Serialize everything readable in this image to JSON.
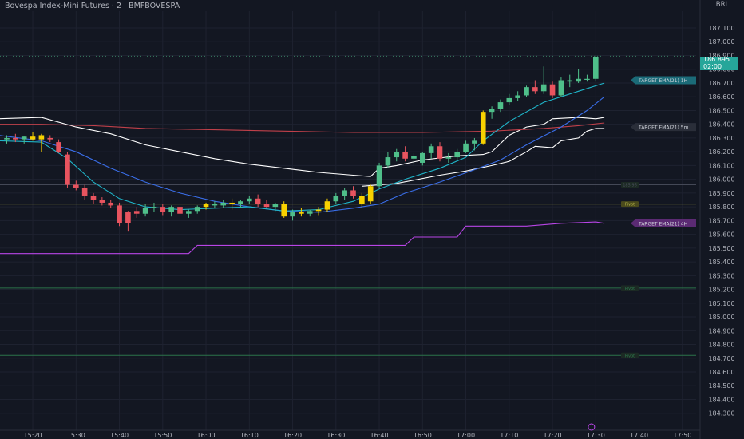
{
  "header": {
    "title": "Bovespa Index-Mini Futures · 2 · BMFBOVESPA"
  },
  "price_axis": {
    "currency": "BRL",
    "last_price": "186.895",
    "countdown": "02:00"
  },
  "colors": {
    "background": "#131722",
    "grid": "#1e2230",
    "up": "#4fbf8a",
    "down": "#e8545f",
    "yellow": "#f7d100",
    "white_band": "#ffffff",
    "red_line": "#c0404a",
    "blue_line": "#3a6ee8",
    "cyan_line": "#1fb5c9",
    "purple_line": "#b845e6",
    "pivot_yellow": "#b8b84a",
    "pivot_green": "#2e7d4f"
  },
  "chart_data": {
    "type": "candlestick",
    "title": "Bovespa Index-Mini Futures · 2 · BMFBOVESPA",
    "y_range": [
      184.25,
      187.25
    ],
    "x_range": [
      -1,
      68
    ],
    "y_ticks": [
      "187.100",
      "187.000",
      "186.900",
      "186.800",
      "186.700",
      "186.600",
      "186.500",
      "186.400",
      "186.300",
      "186.200",
      "186.100",
      "186.000",
      "185.900",
      "185.800",
      "185.700",
      "185.600",
      "185.500",
      "185.400",
      "185.300",
      "185.200",
      "185.100",
      "185.000",
      "184.900",
      "184.800",
      "184.700",
      "184.600",
      "184.500",
      "184.400",
      "184.300"
    ],
    "x_ticks": [
      {
        "label": "15:20",
        "i": 3
      },
      {
        "label": "15:30",
        "i": 8
      },
      {
        "label": "15:40",
        "i": 13
      },
      {
        "label": "15:50",
        "i": 18
      },
      {
        "label": "16:00",
        "i": 23
      },
      {
        "label": "16:10",
        "i": 28
      },
      {
        "label": "16:20",
        "i": 33
      },
      {
        "label": "16:30",
        "i": 38
      },
      {
        "label": "16:40",
        "i": 43
      },
      {
        "label": "16:50",
        "i": 48
      },
      {
        "label": "17:00",
        "i": 53
      },
      {
        "label": "17:10",
        "i": 58
      },
      {
        "label": "17:20",
        "i": 63
      },
      {
        "label": "17:30",
        "i": 68
      },
      {
        "label": "17:40",
        "i": 73
      },
      {
        "label": "17:50",
        "i": 78
      }
    ],
    "candles": [
      {
        "i": 0,
        "o": 186.29,
        "h": 186.32,
        "l": 186.26,
        "c": 186.3,
        "color": "up"
      },
      {
        "i": 1,
        "o": 186.3,
        "h": 186.33,
        "l": 186.27,
        "c": 186.29,
        "color": "down"
      },
      {
        "i": 2,
        "o": 186.29,
        "h": 186.31,
        "l": 186.26,
        "c": 186.31,
        "color": "up"
      },
      {
        "i": 3,
        "o": 186.31,
        "h": 186.34,
        "l": 186.28,
        "c": 186.29,
        "color": "yellow"
      },
      {
        "i": 4,
        "o": 186.29,
        "h": 186.33,
        "l": 186.2,
        "c": 186.32,
        "color": "yellow"
      },
      {
        "i": 5,
        "o": 186.3,
        "h": 186.32,
        "l": 186.27,
        "c": 186.29,
        "color": "down"
      },
      {
        "i": 6,
        "o": 186.27,
        "h": 186.29,
        "l": 186.19,
        "c": 186.2,
        "color": "down"
      },
      {
        "i": 7,
        "o": 186.18,
        "h": 186.2,
        "l": 185.94,
        "c": 185.96,
        "color": "down"
      },
      {
        "i": 8,
        "o": 185.96,
        "h": 185.99,
        "l": 185.92,
        "c": 185.94,
        "color": "down"
      },
      {
        "i": 9,
        "o": 185.94,
        "h": 185.96,
        "l": 185.85,
        "c": 185.88,
        "color": "down"
      },
      {
        "i": 10,
        "o": 185.88,
        "h": 185.9,
        "l": 185.82,
        "c": 185.85,
        "color": "down"
      },
      {
        "i": 11,
        "o": 185.85,
        "h": 185.87,
        "l": 185.81,
        "c": 185.83,
        "color": "down"
      },
      {
        "i": 12,
        "o": 185.83,
        "h": 185.85,
        "l": 185.79,
        "c": 185.81,
        "color": "down"
      },
      {
        "i": 13,
        "o": 185.81,
        "h": 185.83,
        "l": 185.66,
        "c": 185.68,
        "color": "down"
      },
      {
        "i": 14,
        "o": 185.68,
        "h": 185.77,
        "l": 185.62,
        "c": 185.76,
        "color": "down"
      },
      {
        "i": 15,
        "o": 185.77,
        "h": 185.8,
        "l": 185.72,
        "c": 185.75,
        "color": "down"
      },
      {
        "i": 16,
        "o": 185.75,
        "h": 185.82,
        "l": 185.73,
        "c": 185.79,
        "color": "up"
      },
      {
        "i": 17,
        "o": 185.79,
        "h": 185.83,
        "l": 185.76,
        "c": 185.8,
        "color": "up"
      },
      {
        "i": 18,
        "o": 185.8,
        "h": 185.82,
        "l": 185.74,
        "c": 185.76,
        "color": "down"
      },
      {
        "i": 19,
        "o": 185.76,
        "h": 185.81,
        "l": 185.73,
        "c": 185.8,
        "color": "up"
      },
      {
        "i": 20,
        "o": 185.8,
        "h": 185.83,
        "l": 185.74,
        "c": 185.75,
        "color": "down"
      },
      {
        "i": 21,
        "o": 185.75,
        "h": 185.78,
        "l": 185.72,
        "c": 185.77,
        "color": "up"
      },
      {
        "i": 22,
        "o": 185.77,
        "h": 185.81,
        "l": 185.75,
        "c": 185.8,
        "color": "up"
      },
      {
        "i": 23,
        "o": 185.8,
        "h": 185.83,
        "l": 185.78,
        "c": 185.82,
        "color": "yellow"
      },
      {
        "i": 24,
        "o": 185.82,
        "h": 185.84,
        "l": 185.79,
        "c": 185.81,
        "color": "up"
      },
      {
        "i": 25,
        "o": 185.81,
        "h": 185.85,
        "l": 185.79,
        "c": 185.83,
        "color": "up"
      },
      {
        "i": 26,
        "o": 185.83,
        "h": 185.86,
        "l": 185.78,
        "c": 185.82,
        "color": "yellow"
      },
      {
        "i": 27,
        "o": 185.82,
        "h": 185.85,
        "l": 185.79,
        "c": 185.84,
        "color": "up"
      },
      {
        "i": 28,
        "o": 185.84,
        "h": 185.88,
        "l": 185.82,
        "c": 185.86,
        "color": "up"
      },
      {
        "i": 29,
        "o": 185.86,
        "h": 185.89,
        "l": 185.8,
        "c": 185.82,
        "color": "down"
      },
      {
        "i": 30,
        "o": 185.82,
        "h": 185.85,
        "l": 185.79,
        "c": 185.8,
        "color": "down"
      },
      {
        "i": 31,
        "o": 185.8,
        "h": 185.83,
        "l": 185.77,
        "c": 185.82,
        "color": "up"
      },
      {
        "i": 32,
        "o": 185.82,
        "h": 185.84,
        "l": 185.72,
        "c": 185.73,
        "color": "yellow"
      },
      {
        "i": 33,
        "o": 185.73,
        "h": 185.78,
        "l": 185.7,
        "c": 185.76,
        "color": "up"
      },
      {
        "i": 34,
        "o": 185.76,
        "h": 185.79,
        "l": 185.73,
        "c": 185.75,
        "color": "yellow"
      },
      {
        "i": 35,
        "o": 185.75,
        "h": 185.78,
        "l": 185.73,
        "c": 185.77,
        "color": "up"
      },
      {
        "i": 36,
        "o": 185.77,
        "h": 185.8,
        "l": 185.74,
        "c": 185.78,
        "color": "yellow"
      },
      {
        "i": 37,
        "o": 185.78,
        "h": 185.86,
        "l": 185.76,
        "c": 185.84,
        "color": "yellow"
      },
      {
        "i": 38,
        "o": 185.84,
        "h": 185.9,
        "l": 185.82,
        "c": 185.88,
        "color": "up"
      },
      {
        "i": 39,
        "o": 185.88,
        "h": 185.94,
        "l": 185.85,
        "c": 185.92,
        "color": "up"
      },
      {
        "i": 40,
        "o": 185.92,
        "h": 185.95,
        "l": 185.86,
        "c": 185.88,
        "color": "down"
      },
      {
        "i": 41,
        "o": 185.82,
        "h": 185.9,
        "l": 185.79,
        "c": 185.88,
        "color": "yellow"
      },
      {
        "i": 42,
        "o": 185.84,
        "h": 185.96,
        "l": 185.82,
        "c": 185.95,
        "color": "yellow"
      },
      {
        "i": 43,
        "o": 185.95,
        "h": 186.12,
        "l": 185.94,
        "c": 186.1,
        "color": "up"
      },
      {
        "i": 44,
        "o": 186.1,
        "h": 186.2,
        "l": 186.08,
        "c": 186.16,
        "color": "up"
      },
      {
        "i": 45,
        "o": 186.16,
        "h": 186.22,
        "l": 186.13,
        "c": 186.2,
        "color": "up"
      },
      {
        "i": 46,
        "o": 186.2,
        "h": 186.24,
        "l": 186.13,
        "c": 186.15,
        "color": "down"
      },
      {
        "i": 47,
        "o": 186.15,
        "h": 186.19,
        "l": 186.1,
        "c": 186.17,
        "color": "up"
      },
      {
        "i": 48,
        "o": 186.12,
        "h": 186.2,
        "l": 186.1,
        "c": 186.19,
        "color": "up"
      },
      {
        "i": 49,
        "o": 186.19,
        "h": 186.26,
        "l": 186.15,
        "c": 186.24,
        "color": "up"
      },
      {
        "i": 50,
        "o": 186.24,
        "h": 186.27,
        "l": 186.13,
        "c": 186.15,
        "color": "down"
      },
      {
        "i": 51,
        "o": 186.15,
        "h": 186.19,
        "l": 186.12,
        "c": 186.16,
        "color": "up"
      },
      {
        "i": 52,
        "o": 186.16,
        "h": 186.22,
        "l": 186.14,
        "c": 186.2,
        "color": "up"
      },
      {
        "i": 53,
        "o": 186.2,
        "h": 186.28,
        "l": 186.19,
        "c": 186.26,
        "color": "up"
      },
      {
        "i": 54,
        "o": 186.26,
        "h": 186.3,
        "l": 186.21,
        "c": 186.28,
        "color": "up"
      },
      {
        "i": 55,
        "o": 186.26,
        "h": 186.5,
        "l": 186.25,
        "c": 186.49,
        "color": "yellow"
      },
      {
        "i": 56,
        "o": 186.49,
        "h": 186.53,
        "l": 186.44,
        "c": 186.51,
        "color": "up"
      },
      {
        "i": 57,
        "o": 186.51,
        "h": 186.58,
        "l": 186.49,
        "c": 186.56,
        "color": "up"
      },
      {
        "i": 58,
        "o": 186.56,
        "h": 186.62,
        "l": 186.54,
        "c": 186.59,
        "color": "up"
      },
      {
        "i": 59,
        "o": 186.59,
        "h": 186.64,
        "l": 186.57,
        "c": 186.61,
        "color": "up"
      },
      {
        "i": 60,
        "o": 186.61,
        "h": 186.68,
        "l": 186.6,
        "c": 186.67,
        "color": "up"
      },
      {
        "i": 61,
        "o": 186.67,
        "h": 186.72,
        "l": 186.62,
        "c": 186.64,
        "color": "down"
      },
      {
        "i": 62,
        "o": 186.64,
        "h": 186.82,
        "l": 186.62,
        "c": 186.69,
        "color": "up"
      },
      {
        "i": 63,
        "o": 186.69,
        "h": 186.71,
        "l": 186.59,
        "c": 186.61,
        "color": "down"
      },
      {
        "i": 64,
        "o": 186.61,
        "h": 186.74,
        "l": 186.6,
        "c": 186.72,
        "color": "up"
      },
      {
        "i": 65,
        "o": 186.72,
        "h": 186.76,
        "l": 186.67,
        "c": 186.71,
        "color": "up"
      },
      {
        "i": 66,
        "o": 186.71,
        "h": 186.8,
        "l": 186.7,
        "c": 186.73,
        "color": "up"
      },
      {
        "i": 67,
        "o": 186.73,
        "h": 186.76,
        "l": 186.71,
        "c": 186.73,
        "color": "up"
      },
      {
        "i": 68,
        "o": 186.73,
        "h": 186.9,
        "l": 186.71,
        "c": 186.89,
        "color": "up"
      }
    ],
    "series": [
      {
        "color": "white",
        "points": [
          [
            -1,
            186.44
          ],
          [
            4,
            186.45
          ],
          [
            8,
            186.38
          ],
          [
            12,
            186.33
          ],
          [
            16,
            186.25
          ],
          [
            20,
            186.2
          ],
          [
            24,
            186.15
          ],
          [
            28,
            186.11
          ],
          [
            32,
            186.08
          ],
          [
            36,
            186.05
          ],
          [
            40,
            186.03
          ],
          [
            42,
            186.02
          ],
          [
            43,
            186.08
          ],
          [
            45,
            186.1
          ],
          [
            48,
            186.14
          ],
          [
            52,
            186.17
          ],
          [
            55,
            186.18
          ],
          [
            56,
            186.2
          ],
          [
            58,
            186.32
          ],
          [
            60,
            186.38
          ],
          [
            62,
            186.4
          ],
          [
            63,
            186.44
          ],
          [
            66,
            186.45
          ],
          [
            68,
            186.44
          ],
          [
            69,
            186.45
          ]
        ]
      },
      {
        "color": "white",
        "points": [
          [
            41,
            185.95
          ],
          [
            45,
            185.97
          ],
          [
            50,
            186.03
          ],
          [
            53,
            186.06
          ],
          [
            56,
            186.1
          ],
          [
            58,
            186.13
          ],
          [
            60,
            186.2
          ],
          [
            61,
            186.24
          ],
          [
            63,
            186.23
          ],
          [
            64,
            186.28
          ],
          [
            66,
            186.3
          ],
          [
            67,
            186.35
          ],
          [
            68,
            186.37
          ],
          [
            69,
            186.37
          ]
        ]
      },
      {
        "color": "red",
        "points": [
          [
            -1,
            186.4
          ],
          [
            4,
            186.4
          ],
          [
            10,
            186.39
          ],
          [
            16,
            186.37
          ],
          [
            24,
            186.36
          ],
          [
            32,
            186.35
          ],
          [
            40,
            186.34
          ],
          [
            48,
            186.34
          ],
          [
            56,
            186.35
          ],
          [
            62,
            186.37
          ],
          [
            66,
            186.39
          ],
          [
            69,
            186.41
          ]
        ]
      },
      {
        "color": "blue",
        "points": [
          [
            -1,
            186.32
          ],
          [
            4,
            186.28
          ],
          [
            8,
            186.2
          ],
          [
            12,
            186.08
          ],
          [
            16,
            185.98
          ],
          [
            20,
            185.9
          ],
          [
            24,
            185.84
          ],
          [
            28,
            185.8
          ],
          [
            32,
            185.77
          ],
          [
            36,
            185.76
          ],
          [
            40,
            185.79
          ],
          [
            43,
            185.82
          ],
          [
            46,
            185.9
          ],
          [
            50,
            185.98
          ],
          [
            54,
            186.07
          ],
          [
            57,
            186.14
          ],
          [
            60,
            186.25
          ],
          [
            64,
            186.38
          ],
          [
            67,
            186.5
          ],
          [
            69,
            186.6
          ]
        ]
      },
      {
        "color": "cyan",
        "points": [
          [
            -1,
            186.28
          ],
          [
            4,
            186.27
          ],
          [
            7,
            186.15
          ],
          [
            10,
            185.98
          ],
          [
            13,
            185.86
          ],
          [
            16,
            185.8
          ],
          [
            20,
            185.78
          ],
          [
            24,
            185.79
          ],
          [
            28,
            185.8
          ],
          [
            32,
            185.77
          ],
          [
            36,
            185.78
          ],
          [
            40,
            185.84
          ],
          [
            43,
            185.93
          ],
          [
            46,
            186.0
          ],
          [
            50,
            186.08
          ],
          [
            53,
            186.16
          ],
          [
            55,
            186.28
          ],
          [
            58,
            186.42
          ],
          [
            62,
            186.56
          ],
          [
            66,
            186.64
          ],
          [
            69,
            186.7
          ]
        ]
      },
      {
        "color": "purple",
        "points": [
          [
            -1,
            185.46
          ],
          [
            21,
            185.46
          ],
          [
            22,
            185.52
          ],
          [
            46,
            185.52
          ],
          [
            47,
            185.58
          ],
          [
            52,
            185.58
          ],
          [
            53,
            185.66
          ],
          [
            60,
            185.66
          ],
          [
            64,
            185.68
          ],
          [
            68,
            185.69
          ],
          [
            69,
            185.68
          ]
        ]
      }
    ],
    "levels": [
      {
        "value": 185.96,
        "color": "gray",
        "label": "185.96"
      },
      {
        "value": 185.82,
        "color": "yellow",
        "label": "Pivot"
      },
      {
        "value": 185.21,
        "color": "green",
        "label": "Pivot"
      },
      {
        "value": 184.72,
        "color": "green",
        "label": "Pivot"
      }
    ],
    "flags": [
      {
        "label": "TARGET EMA(21) 1H",
        "value": 186.72,
        "color": "#1b6b78"
      },
      {
        "label": "TARGET EMA(21) 5m",
        "value": 186.38,
        "color": "#2a2e39"
      },
      {
        "label": "TARGET EMA(21) 4H",
        "value": 185.68,
        "color": "#5b2a73"
      }
    ]
  }
}
